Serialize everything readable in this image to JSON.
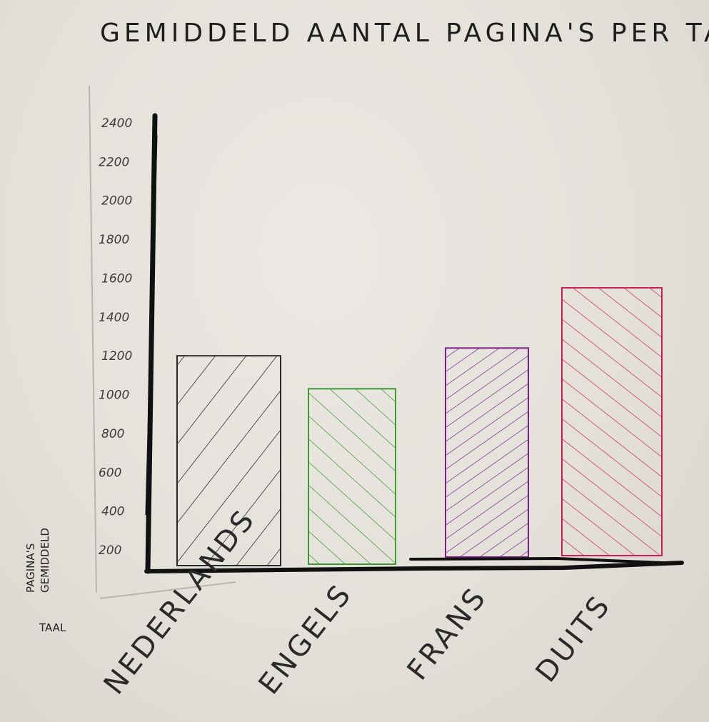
{
  "chart_data": {
    "type": "bar",
    "title": "GEMIDDELD AANTAL PAGINA'S PER TAAL",
    "ylabel_line1": "PAGINA'S",
    "ylabel_line2": "GEMIDDELD",
    "xlabel": "TAAL",
    "categories": [
      "NEDERLANDS",
      "ENGELS",
      "FRANS",
      "DUITS"
    ],
    "values": [
      1200,
      1030,
      1240,
      1550
    ],
    "yticks": [
      "2400",
      "2200",
      "2000",
      "1800",
      "1600",
      "1400",
      "1200",
      "1000",
      "800",
      "600",
      "400",
      "200"
    ],
    "ylim": [
      200,
      2400
    ],
    "grid": false,
    "colors": [
      "#2b2b2b",
      "#3f9a32",
      "#7a1f86",
      "#cf1f4e"
    ],
    "fill": "hatched"
  }
}
